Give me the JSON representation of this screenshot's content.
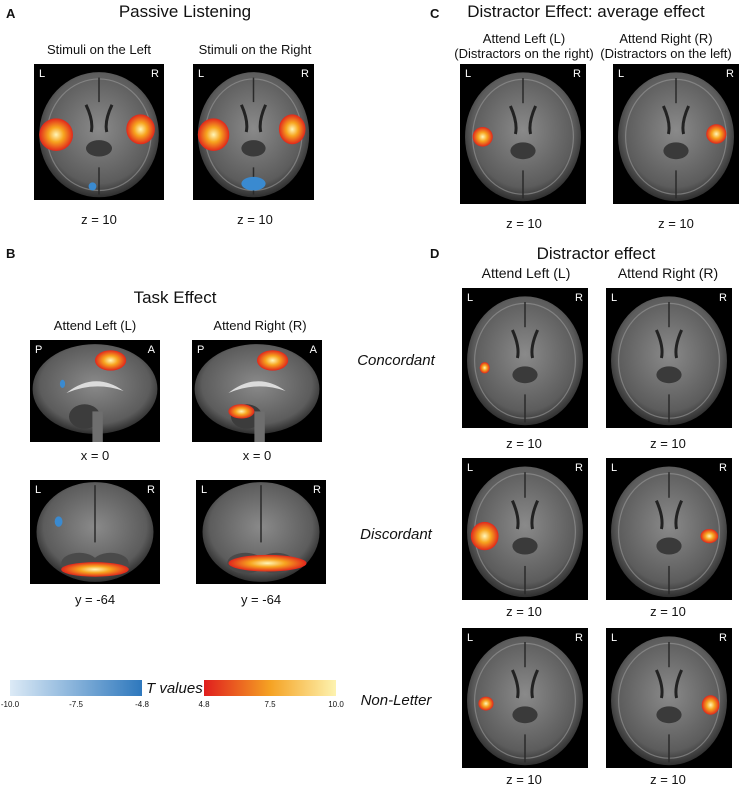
{
  "panel_a": {
    "label": "A",
    "title": "Passive Listening",
    "subs": [
      "Stimuli on the Left",
      "Stimuli on the Right"
    ],
    "coords": [
      "z = 10",
      "z = 10"
    ]
  },
  "panel_b": {
    "label": "B",
    "title": "Task Effect",
    "subs": [
      "Attend Left (L)",
      "Attend Right (R)"
    ],
    "coords_sag": [
      "x = 0",
      "x = 0"
    ],
    "coords_cor": [
      "y = -64",
      "y = -64"
    ]
  },
  "panel_c": {
    "label": "C",
    "title": "Distractor Effect: average effect",
    "subs_line1": [
      "Attend Left (L)",
      "Attend Right (R)"
    ],
    "subs_line2": [
      "(Distractors on the right)",
      "(Distractors on the left)"
    ],
    "coords": [
      "z = 10",
      "z = 10"
    ]
  },
  "panel_d": {
    "label": "D",
    "title": "Distractor effect",
    "subs": [
      "Attend Left (L)",
      "Attend Right (R)"
    ],
    "rows": [
      "Concordant",
      "Discordant",
      "Non-Letter"
    ],
    "coord": "z = 10"
  },
  "orientation": {
    "left": "L",
    "right": "R",
    "posterior": "P",
    "anterior": "A"
  },
  "colorbar": {
    "label": "T values",
    "neg_ticks": [
      "-10.0",
      "-7.5",
      "-4.8"
    ],
    "pos_ticks": [
      "4.8",
      "7.5",
      "10.0"
    ],
    "neg_colors": [
      "#dceaf6",
      "#2e78bd"
    ],
    "pos_colors": [
      "#e01e1e",
      "#f5a223",
      "#fdf3b0"
    ]
  }
}
